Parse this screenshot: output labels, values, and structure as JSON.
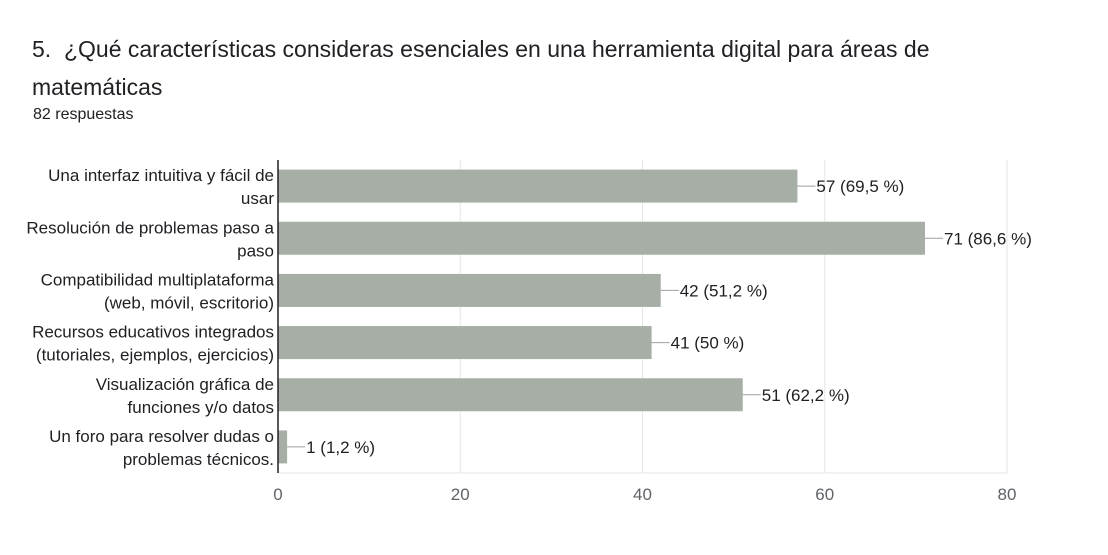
{
  "question": {
    "number": "5.",
    "text": "¿Qué características consideras esenciales en una herramienta digital para áreas de matemáticas",
    "responses": "82 respuestas"
  },
  "chart_data": {
    "type": "bar",
    "orientation": "horizontal",
    "categories": [
      [
        "Una interfaz intuitiva y fácil de",
        "usar"
      ],
      [
        "Resolución de problemas paso a",
        "paso"
      ],
      [
        "Compatibilidad multiplataforma",
        "(web, móvil, escritorio)"
      ],
      [
        "Recursos educativos integrados",
        "(tutoriales, ejemplos, ejercicios)"
      ],
      [
        "Visualización gráfica de",
        "funciones y/o datos"
      ],
      [
        "Un foro para resolver dudas o",
        "problemas técnicos."
      ]
    ],
    "values": [
      57,
      71,
      42,
      41,
      51,
      1
    ],
    "data_labels": [
      "57 (69,5 %)",
      "71 (86,6 %)",
      "42 (51,2 %)",
      "41 (50 %)",
      "51 (62,2 %)",
      "1 (1,2 %)"
    ],
    "xlim": [
      0,
      80
    ],
    "xticks": [
      0,
      20,
      40,
      60,
      80
    ],
    "grid": true,
    "bar_color": "#a6aea5"
  }
}
